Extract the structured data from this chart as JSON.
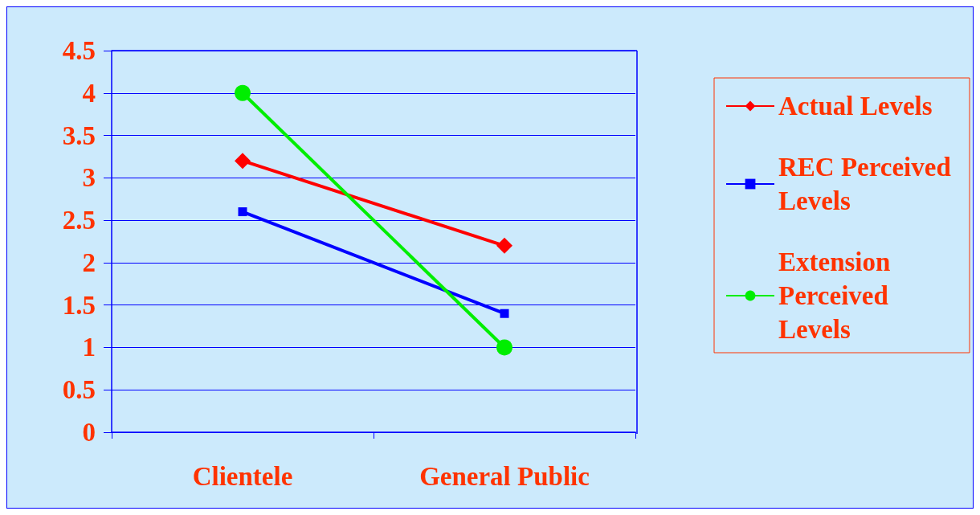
{
  "chart_data": {
    "type": "line",
    "categories": [
      "Clientele",
      "General Public"
    ],
    "series": [
      {
        "name": "Actual Levels",
        "color": "#ff0000",
        "values": [
          3.2,
          2.2
        ],
        "marker": "diamond"
      },
      {
        "name": "REC Perceived Levels",
        "color": "#0000ff",
        "values": [
          2.6,
          1.4
        ],
        "marker": "square"
      },
      {
        "name": "Extension Perceived Levels",
        "color": "#00ee00",
        "values": [
          4.0,
          1.0
        ],
        "marker": "circle"
      }
    ],
    "ylim": [
      0,
      4.5
    ],
    "yticks": [
      0,
      0.5,
      1,
      1.5,
      2,
      2.5,
      3,
      3.5,
      4,
      4.5
    ],
    "grid": "y",
    "legend": "right",
    "line_style": "solid"
  }
}
